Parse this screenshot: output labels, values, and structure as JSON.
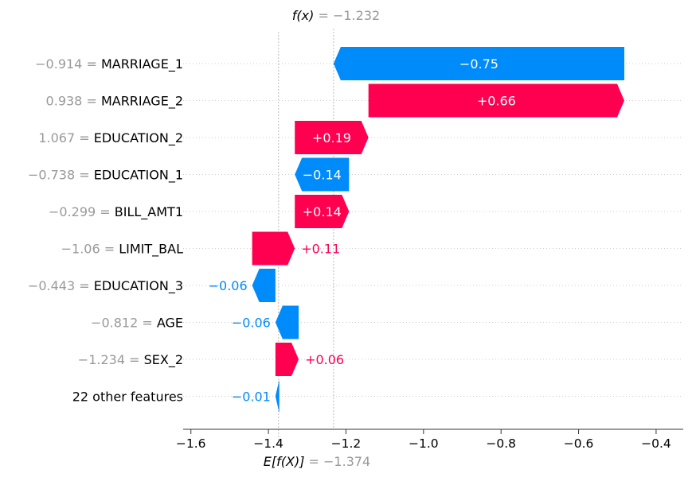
{
  "chart_data": {
    "type": "waterfall",
    "fx_label": "f(x)",
    "fx_value_text": " = −1.232",
    "ex_label": "E[f(X)]",
    "ex_value_text": " = −1.374",
    "base_value": -1.374,
    "final_value": -1.232,
    "xlim": [
      -1.62,
      -0.33
    ],
    "x_ticks": [
      -1.6,
      -1.4,
      -1.2,
      -1.0,
      -0.8,
      -0.6,
      -0.4
    ],
    "x_tick_labels": [
      "−1.6",
      "−1.4",
      "−1.2",
      "−1.0",
      "−0.8",
      "−0.6",
      "−0.4"
    ],
    "features": [
      {
        "value": "−0.914 = ",
        "name": "MARRIAGE_1",
        "contribution": -0.75,
        "label": "−0.75",
        "start": -0.482,
        "end": -1.232
      },
      {
        "value": "0.938 = ",
        "name": "MARRIAGE_2",
        "contribution": 0.66,
        "label": "+0.66",
        "start": -1.142,
        "end": -0.482
      },
      {
        "value": "1.067 = ",
        "name": "EDUCATION_2",
        "contribution": 0.19,
        "label": "+0.19",
        "start": -1.332,
        "end": -1.142
      },
      {
        "value": "−0.738 = ",
        "name": "EDUCATION_1",
        "contribution": -0.14,
        "label": "−0.14",
        "start": -1.192,
        "end": -1.332
      },
      {
        "value": "−0.299 = ",
        "name": "BILL_AMT1",
        "contribution": 0.14,
        "label": "+0.14",
        "start": -1.332,
        "end": -1.192
      },
      {
        "value": "−1.06 = ",
        "name": "LIMIT_BAL",
        "contribution": 0.11,
        "label": "+0.11",
        "start": -1.442,
        "end": -1.332
      },
      {
        "value": "−0.443 = ",
        "name": "EDUCATION_3",
        "contribution": -0.06,
        "label": "−0.06",
        "start": -1.382,
        "end": -1.442
      },
      {
        "value": "−0.812 = ",
        "name": "AGE",
        "contribution": -0.06,
        "label": "−0.06",
        "start": -1.322,
        "end": -1.382
      },
      {
        "value": "−1.234 = ",
        "name": "SEX_2",
        "contribution": 0.06,
        "label": "+0.06",
        "start": -1.382,
        "end": -1.322
      },
      {
        "value": "",
        "name": "22 other features",
        "contribution": -0.01,
        "label": "−0.01",
        "start": -1.372,
        "end": -1.382
      }
    ],
    "colors": {
      "positive": "#ff0051",
      "negative": "#008bfb",
      "value_text": "#999999",
      "grid": "#cccccc",
      "axis": "#333333"
    }
  }
}
